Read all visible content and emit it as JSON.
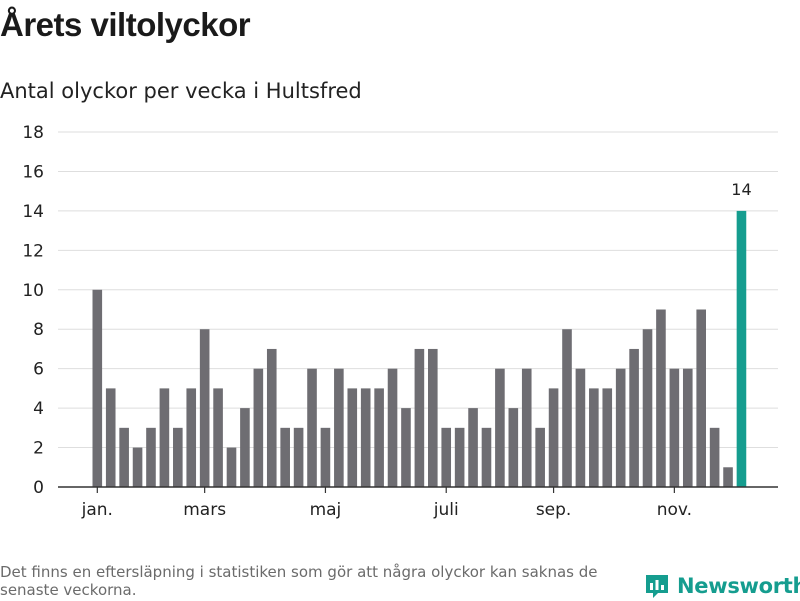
{
  "header": {
    "title": "Årets viltolyckor",
    "subtitle": "Antal olyckor per vecka i Hultsfred"
  },
  "footer": {
    "note": "Det finns en eftersläpning i statistiken som gör att några olyckor kan saknas de senaste veckorna.",
    "brand": "Newsworthy"
  },
  "colors": {
    "bar": "#6e6d72",
    "highlight": "#159d8f",
    "grid": "#dedede",
    "axis": "#333333",
    "brand": "#159d8f"
  },
  "chart_data": {
    "type": "bar",
    "title": "",
    "xlabel": "",
    "ylabel": "",
    "ylim": [
      0,
      18
    ],
    "yticks": [
      0,
      2,
      4,
      6,
      8,
      10,
      12,
      14,
      16,
      18
    ],
    "grid": true,
    "x_tick_labels": [
      {
        "label": "jan.",
        "week": 1
      },
      {
        "label": "mars",
        "week": 9
      },
      {
        "label": "maj",
        "week": 18
      },
      {
        "label": "juli",
        "week": 27
      },
      {
        "label": "sep.",
        "week": 35
      },
      {
        "label": "nov.",
        "week": 44
      }
    ],
    "weeks": [
      1,
      2,
      3,
      4,
      5,
      6,
      7,
      8,
      9,
      10,
      11,
      12,
      13,
      14,
      15,
      16,
      17,
      18,
      19,
      20,
      21,
      22,
      23,
      24,
      25,
      26,
      27,
      28,
      29,
      30,
      31,
      32,
      33,
      34,
      35,
      36,
      37,
      38,
      39,
      40,
      41,
      42,
      43,
      44,
      45,
      46,
      47,
      48,
      49
    ],
    "values": [
      10,
      5,
      3,
      2,
      3,
      5,
      3,
      5,
      8,
      5,
      2,
      4,
      6,
      7,
      3,
      3,
      6,
      3,
      6,
      5,
      5,
      5,
      6,
      4,
      7,
      7,
      3,
      3,
      4,
      3,
      6,
      4,
      6,
      3,
      5,
      8,
      6,
      5,
      5,
      6,
      7,
      8,
      9,
      6,
      6,
      9,
      3,
      1,
      14
    ],
    "highlight_index": 48,
    "data_labels": [
      {
        "index": 48,
        "text": "14"
      }
    ]
  }
}
